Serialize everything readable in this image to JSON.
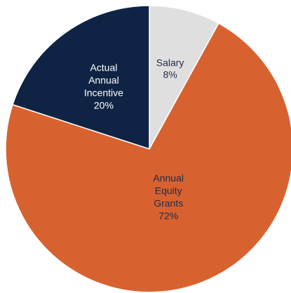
{
  "chart_data": {
    "type": "pie",
    "slices": [
      {
        "label": "Salary",
        "value": 8,
        "value_label": "8%",
        "color": "#e0dfdf",
        "text_color": "#1f2b4a"
      },
      {
        "label": "Annual Equity Grants",
        "value": 72,
        "value_label": "72%",
        "color": "#d8622f",
        "text_color": "#1f2b4a"
      },
      {
        "label": "Actual Annual Incentive",
        "value": 20,
        "value_label": "20%",
        "color": "#0f2444",
        "text_color": "#ffffff"
      }
    ],
    "start_angle": "12 o'clock",
    "direction": "clockwise",
    "legend": "none",
    "title": ""
  }
}
